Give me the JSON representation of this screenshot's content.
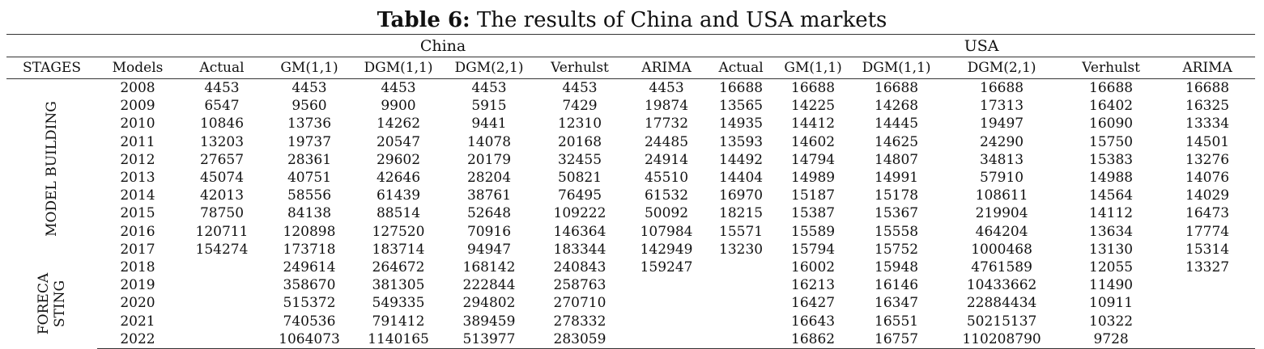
{
  "title": {
    "bold": "Table 6:",
    "rest": " The results of China and USA markets"
  },
  "groups": {
    "china": "China",
    "usa": "USA"
  },
  "columns": [
    "STAGES",
    "Models",
    "Actual",
    "GM(1,1)",
    "DGM(1,1)",
    "DGM(2,1)",
    "Verhulst",
    "ARIMA",
    "Actual",
    "GM(1,1)",
    "DGM(1,1)",
    "DGM(2,1)",
    "Verhulst",
    "ARIMA"
  ],
  "stages": {
    "model_building": "MODEL BUILDING",
    "forecasting_line1": "FORECA",
    "forecasting_line2": "STING"
  },
  "rows": [
    [
      "2008",
      "4453",
      "4453",
      "4453",
      "4453",
      "4453",
      "4453",
      "16688",
      "16688",
      "16688",
      "16688",
      "16688",
      "16688"
    ],
    [
      "2009",
      "6547",
      "9560",
      "9900",
      "5915",
      "7429",
      "19874",
      "13565",
      "14225",
      "14268",
      "17313",
      "16402",
      "16325"
    ],
    [
      "2010",
      "10846",
      "13736",
      "14262",
      "9441",
      "12310",
      "17732",
      "14935",
      "14412",
      "14445",
      "19497",
      "16090",
      "13334"
    ],
    [
      "2011",
      "13203",
      "19737",
      "20547",
      "14078",
      "20168",
      "24485",
      "13593",
      "14602",
      "14625",
      "24290",
      "15750",
      "14501"
    ],
    [
      "2012",
      "27657",
      "28361",
      "29602",
      "20179",
      "32455",
      "24914",
      "14492",
      "14794",
      "14807",
      "34813",
      "15383",
      "13276"
    ],
    [
      "2013",
      "45074",
      "40751",
      "42646",
      "28204",
      "50821",
      "45510",
      "14404",
      "14989",
      "14991",
      "57910",
      "14988",
      "14076"
    ],
    [
      "2014",
      "42013",
      "58556",
      "61439",
      "38761",
      "76495",
      "61532",
      "16970",
      "15187",
      "15178",
      "108611",
      "14564",
      "14029"
    ],
    [
      "2015",
      "78750",
      "84138",
      "88514",
      "52648",
      "109222",
      "50092",
      "18215",
      "15387",
      "15367",
      "219904",
      "14112",
      "16473"
    ],
    [
      "2016",
      "120711",
      "120898",
      "127520",
      "70916",
      "146364",
      "107984",
      "15571",
      "15589",
      "15558",
      "464204",
      "13634",
      "17774"
    ],
    [
      "2017",
      "154274",
      "173718",
      "183714",
      "94947",
      "183344",
      "142949",
      "13230",
      "15794",
      "15752",
      "1000468",
      "13130",
      "15314"
    ],
    [
      "2018",
      "",
      "249614",
      "264672",
      "168142",
      "240843",
      "159247",
      "",
      "16002",
      "15948",
      "4761589",
      "12055",
      "13327"
    ],
    [
      "2019",
      "",
      "358670",
      "381305",
      "222844",
      "258763",
      "",
      "",
      "16213",
      "16146",
      "10433662",
      "11490",
      ""
    ],
    [
      "2020",
      "",
      "515372",
      "549335",
      "294802",
      "270710",
      "",
      "",
      "16427",
      "16347",
      "22884434",
      "10911",
      ""
    ],
    [
      "2021",
      "",
      "740536",
      "791412",
      "389459",
      "278332",
      "",
      "",
      "16643",
      "16551",
      "50215137",
      "10322",
      ""
    ],
    [
      "2022",
      "",
      "1064073",
      "1140165",
      "513977",
      "283059",
      "",
      "",
      "16862",
      "16757",
      "110208790",
      "9728",
      ""
    ]
  ]
}
